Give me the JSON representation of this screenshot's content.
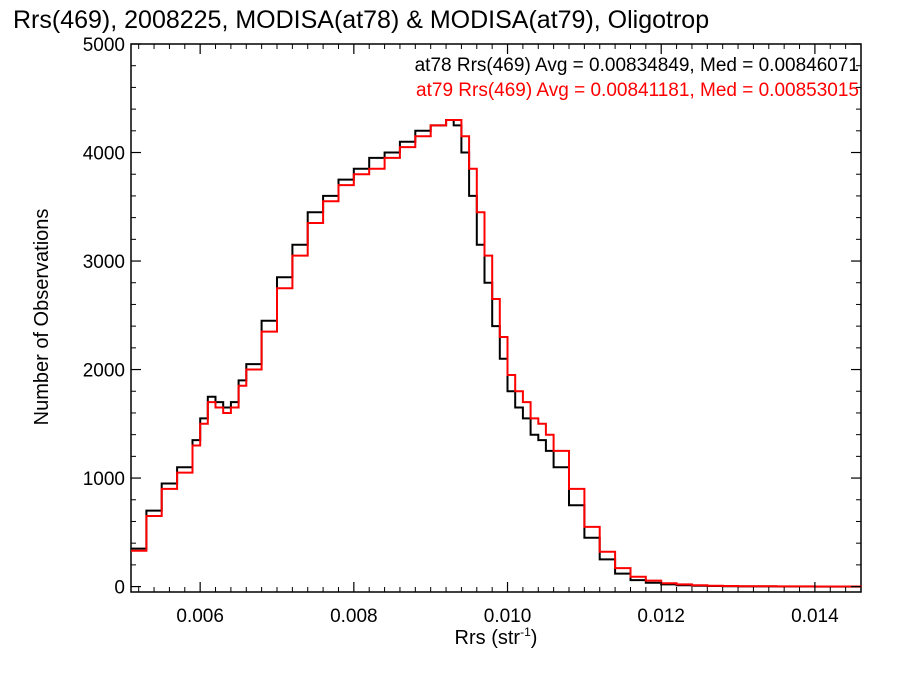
{
  "chart_data": {
    "type": "line",
    "title": "Rrs(469), 2008225, MODISA(at78) & MODISA(at79), Oligotrop",
    "xlabel": "Rrs (str",
    "xlabel_sup": "-1",
    "xlabel_close": ")",
    "ylabel": "Number of Observations",
    "xlim": [
      0.0051,
      0.0146
    ],
    "ylim": [
      -50,
      5000
    ],
    "xticks": [
      0.006,
      0.008,
      0.01,
      0.012,
      0.014
    ],
    "xtick_labels": [
      "0.006",
      "0.008",
      "0.010",
      "0.012",
      "0.014"
    ],
    "yticks": [
      0,
      1000,
      2000,
      3000,
      4000,
      5000
    ],
    "ytick_labels": [
      "0",
      "1000",
      "2000",
      "3000",
      "4000",
      "5000"
    ],
    "step": true,
    "grid": false,
    "legend_placement": "top-right",
    "series": [
      {
        "name": "at78 Rrs(469) Avg = 0.00834849, Med = 0.00846071",
        "color": "#000000",
        "x": [
          0.0051,
          0.0053,
          0.0055,
          0.0057,
          0.0059,
          0.006,
          0.0061,
          0.0062,
          0.0063,
          0.0064,
          0.0065,
          0.0066,
          0.0068,
          0.007,
          0.0072,
          0.0074,
          0.0076,
          0.0078,
          0.008,
          0.0082,
          0.0084,
          0.0086,
          0.0088,
          0.009,
          0.0092,
          0.0093,
          0.0094,
          0.0095,
          0.0096,
          0.0097,
          0.0098,
          0.0099,
          0.01,
          0.0101,
          0.0102,
          0.0103,
          0.0104,
          0.0105,
          0.0106,
          0.0108,
          0.011,
          0.0112,
          0.0114,
          0.0116,
          0.0118,
          0.012,
          0.0122,
          0.0124,
          0.0126,
          0.0128,
          0.013,
          0.0135,
          0.014,
          0.0146
        ],
        "y": [
          350,
          700,
          950,
          1100,
          1350,
          1550,
          1750,
          1700,
          1650,
          1700,
          1900,
          2050,
          2450,
          2850,
          3150,
          3450,
          3600,
          3750,
          3850,
          3950,
          4000,
          4100,
          4200,
          4250,
          4300,
          4250,
          4000,
          3600,
          3150,
          2800,
          2400,
          2100,
          1800,
          1650,
          1550,
          1400,
          1350,
          1250,
          1100,
          750,
          450,
          250,
          120,
          60,
          35,
          20,
          12,
          8,
          5,
          3,
          2,
          1,
          0,
          0
        ]
      },
      {
        "name": "at79 Rrs(469) Avg = 0.00841181, Med = 0.00853015",
        "color": "#ff0000",
        "x": [
          0.0051,
          0.0053,
          0.0055,
          0.0057,
          0.0059,
          0.006,
          0.0061,
          0.0062,
          0.0063,
          0.0064,
          0.0065,
          0.0066,
          0.0068,
          0.007,
          0.0072,
          0.0074,
          0.0076,
          0.0078,
          0.008,
          0.0082,
          0.0084,
          0.0086,
          0.0088,
          0.009,
          0.0092,
          0.0093,
          0.0094,
          0.0095,
          0.0096,
          0.0097,
          0.0098,
          0.0099,
          0.01,
          0.0101,
          0.0102,
          0.0103,
          0.0104,
          0.0105,
          0.0106,
          0.0108,
          0.011,
          0.0112,
          0.0114,
          0.0116,
          0.0118,
          0.012,
          0.0122,
          0.0124,
          0.0126,
          0.0128,
          0.013,
          0.0135,
          0.014,
          0.0146
        ],
        "y": [
          330,
          650,
          900,
          1050,
          1300,
          1500,
          1700,
          1650,
          1600,
          1650,
          1850,
          2000,
          2350,
          2750,
          3050,
          3350,
          3550,
          3700,
          3800,
          3850,
          3950,
          4050,
          4150,
          4250,
          4300,
          4300,
          4150,
          3850,
          3450,
          3050,
          2650,
          2300,
          1950,
          1800,
          1700,
          1550,
          1500,
          1400,
          1250,
          900,
          550,
          320,
          170,
          90,
          55,
          30,
          20,
          12,
          8,
          5,
          3,
          2,
          1,
          0
        ]
      }
    ]
  }
}
